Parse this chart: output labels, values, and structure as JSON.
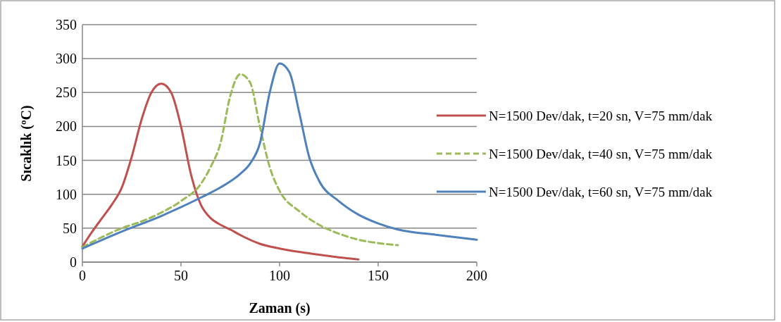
{
  "chart_data": {
    "type": "line",
    "xlabel": "Zaman (s)",
    "ylabel": "Sıcaklık (ºC)",
    "xlim": [
      0,
      200
    ],
    "xticks": [
      0,
      50,
      100,
      150,
      200
    ],
    "ylim": [
      0,
      350
    ],
    "yticks": [
      0,
      50,
      100,
      150,
      200,
      250,
      300,
      350
    ],
    "grid": "y",
    "legend": "right",
    "marker": "none",
    "series": [
      {
        "name": "N=1500 Dev/dak, t=20 sn, V=75 mm/dak",
        "color": "#c0504d",
        "line_style": "solid",
        "x": [
          0,
          5,
          10,
          15,
          20,
          25,
          30,
          35,
          40,
          45,
          50,
          55,
          60,
          65,
          70,
          75,
          80,
          90,
          100,
          110,
          120,
          130,
          140
        ],
        "values": [
          23,
          45,
          65,
          85,
          110,
          155,
          210,
          250,
          263,
          250,
          200,
          130,
          85,
          65,
          55,
          48,
          40,
          27,
          20,
          15,
          11,
          7,
          4
        ]
      },
      {
        "name": "N=1500 Dev/dak, t=40 sn, V=75 mm/dak",
        "color": "#9bbb59",
        "line_style": "dashed",
        "x": [
          0,
          10,
          20,
          30,
          40,
          50,
          60,
          65,
          70,
          75,
          80,
          85,
          90,
          95,
          100,
          110,
          120,
          130,
          140,
          150,
          160
        ],
        "values": [
          22,
          37,
          50,
          60,
          73,
          90,
          115,
          140,
          175,
          245,
          277,
          265,
          200,
          140,
          105,
          75,
          55,
          42,
          33,
          28,
          25
        ]
      },
      {
        "name": "N=1500 Dev/dak, t=60 sn, V=75 mm/dak",
        "color": "#4f81bd",
        "line_style": "solid",
        "x": [
          0,
          20,
          40,
          60,
          70,
          80,
          85,
          90,
          95,
          100,
          105,
          110,
          115,
          120,
          130,
          140,
          150,
          160,
          180,
          200
        ],
        "values": [
          20,
          45,
          68,
          95,
          110,
          130,
          145,
          175,
          250,
          293,
          280,
          220,
          155,
          120,
          90,
          70,
          57,
          48,
          40,
          33
        ]
      }
    ]
  }
}
